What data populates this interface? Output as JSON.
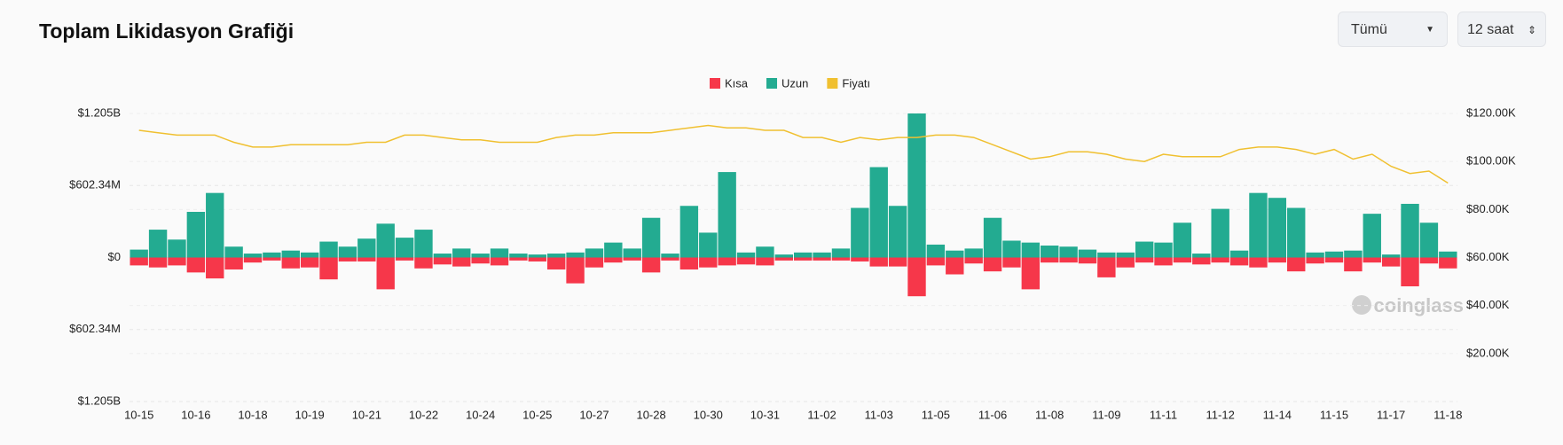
{
  "header": {
    "title": "Toplam Likidasyon Grafiği",
    "filter": "Tümü",
    "interval": "12 saat"
  },
  "watermark": "coinglass",
  "chart_data": {
    "type": "bar",
    "categories": [
      "10-15",
      null,
      null,
      "10-16",
      null,
      null,
      "10-18",
      null,
      null,
      "10-19",
      null,
      null,
      "10-21",
      null,
      null,
      "10-22",
      null,
      null,
      "10-24",
      null,
      null,
      "10-25",
      null,
      null,
      "10-27",
      null,
      null,
      "10-28",
      null,
      null,
      "10-30",
      null,
      null,
      "10-31",
      null,
      null,
      "11-02",
      null,
      null,
      "11-03",
      null,
      null,
      "11-05",
      null,
      null,
      "11-06",
      null,
      null,
      "11-08",
      null,
      null,
      "11-09",
      null,
      null,
      "11-11",
      null,
      null,
      "11-12",
      null,
      null,
      "11-14",
      null,
      null,
      "11-15",
      null,
      null,
      "11-17",
      null,
      null,
      "11-18"
    ],
    "ylim": [
      -1205,
      1205
    ],
    "yticks": [
      {
        "value": -1205,
        "label": "$1.205B"
      },
      {
        "value": -602.34,
        "label": "$602.34M"
      },
      {
        "value": 0,
        "label": "$0"
      },
      {
        "value": 602.34,
        "label": "$602.34M"
      },
      {
        "value": 1205,
        "label": "$1.205B"
      }
    ],
    "y2lim": [
      0,
      120000
    ],
    "y2ticks": [
      {
        "value": 20000,
        "label": "$20.00K"
      },
      {
        "value": 40000,
        "label": "$40.00K"
      },
      {
        "value": 60000,
        "label": "$60.00K"
      },
      {
        "value": 80000,
        "label": "$80.00K"
      },
      {
        "value": 100000,
        "label": "$100.00K"
      },
      {
        "value": 120000,
        "label": "$120.00K"
      }
    ],
    "grid": true,
    "series": [
      {
        "name": "Kısa",
        "color": "#f6374a",
        "values": [
          -66,
          -83,
          -66,
          -125,
          -175,
          -100,
          -42,
          -25,
          -91,
          -83,
          -183,
          -33,
          -33,
          -266,
          -25,
          -91,
          -58,
          -75,
          -50,
          -66,
          -25,
          -33,
          -100,
          -216,
          -83,
          -42,
          -25,
          -125,
          -25,
          -100,
          -83,
          -66,
          -58,
          -66,
          -25,
          -25,
          -25,
          -25,
          -33,
          -75,
          -75,
          -324,
          -66,
          -141,
          -50,
          -116,
          -83,
          -266,
          -42,
          -42,
          -50,
          -166,
          -83,
          -42,
          -66,
          -42,
          -58,
          -42,
          -66,
          -83,
          -42,
          -116,
          -50,
          -42,
          -116,
          -42,
          -75,
          -241,
          -50,
          -91
        ]
      },
      {
        "name": "Uzun",
        "color": "#23ab91",
        "values": [
          66,
          233,
          150,
          382,
          540,
          91,
          33,
          42,
          58,
          42,
          133,
          91,
          158,
          283,
          166,
          233,
          33,
          75,
          33,
          75,
          33,
          25,
          33,
          42,
          75,
          125,
          75,
          332,
          33,
          432,
          208,
          715,
          42,
          91,
          25,
          42,
          42,
          75,
          415,
          756,
          432,
          1205,
          108,
          58,
          75,
          332,
          141,
          125,
          100,
          91,
          66,
          42,
          42,
          133,
          125,
          291,
          33,
          407,
          58,
          540,
          499,
          415,
          42,
          50,
          58,
          366,
          25,
          449,
          291,
          50
        ]
      },
      {
        "name": "Fiyatı",
        "color": "#f0c030",
        "type": "line",
        "axis": "y2",
        "values": [
          113000,
          112000,
          111000,
          111000,
          111000,
          108000,
          106000,
          106000,
          107000,
          107000,
          107000,
          107000,
          108000,
          108000,
          111000,
          111000,
          110000,
          109000,
          109000,
          108000,
          108000,
          108000,
          110000,
          111000,
          111000,
          112000,
          112000,
          112000,
          113000,
          114000,
          115000,
          114000,
          114000,
          113000,
          113000,
          110000,
          110000,
          108000,
          110000,
          109000,
          110000,
          110000,
          111000,
          111000,
          110000,
          107000,
          104000,
          101000,
          102000,
          104000,
          104000,
          103000,
          101000,
          100000,
          103000,
          102000,
          102000,
          102000,
          105000,
          106000,
          106000,
          105000,
          103000,
          105000,
          101000,
          103000,
          98000,
          95000,
          96000,
          91000
        ]
      }
    ]
  }
}
